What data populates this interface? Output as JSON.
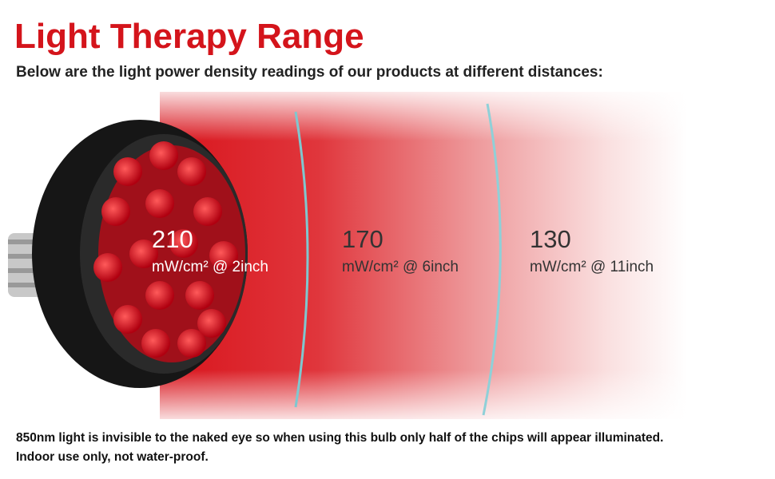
{
  "header": {
    "title": "Light Therapy Range",
    "subtitle": "Below are the light power density readings of our products at different distances:"
  },
  "readings": [
    {
      "value": 210,
      "label": "mW/cm² @ 2inch"
    },
    {
      "value": 170,
      "label": "mW/cm² @ 6inch"
    },
    {
      "value": 130,
      "label": "mW/cm² @ 11inch"
    }
  ],
  "notes": [
    "850nm light is invisible to the naked eye so when using this bulb only half of the chips will appear illuminated.",
    "Indoor use only, not water-proof."
  ]
}
